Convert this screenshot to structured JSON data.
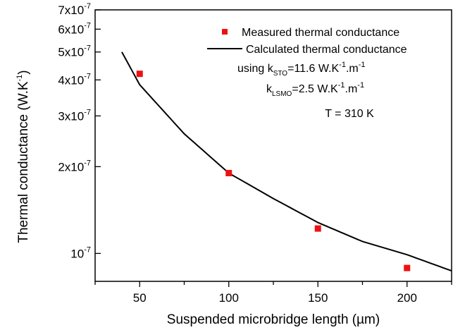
{
  "chart_data": {
    "type": "scatter",
    "y_scale": "log",
    "xlabel": "Suspended microbridge length (µm)",
    "ylabel_parts": {
      "pre": "Thermal conductance (W.K",
      "sup": "-1",
      "post": ")"
    },
    "xlim": [
      25,
      225
    ],
    "ylim": [
      8e-08,
      7e-07
    ],
    "x_ticks": [
      {
        "value": 50,
        "label": "50"
      },
      {
        "value": 100,
        "label": "100"
      },
      {
        "value": 150,
        "label": "150"
      },
      {
        "value": 200,
        "label": "200"
      }
    ],
    "y_ticks": [
      {
        "value": 1e-07,
        "mantissa": "10",
        "exp": "-7"
      },
      {
        "value": 2e-07,
        "mantissa": "2x10",
        "exp": "-7"
      },
      {
        "value": 3e-07,
        "mantissa": "3x10",
        "exp": "-7"
      },
      {
        "value": 4e-07,
        "mantissa": "4x10",
        "exp": "-7"
      },
      {
        "value": 5e-07,
        "mantissa": "5x10",
        "exp": "-7"
      },
      {
        "value": 6e-07,
        "mantissa": "6x10",
        "exp": "-7"
      },
      {
        "value": 7e-07,
        "mantissa": "7x10",
        "exp": "-7"
      }
    ],
    "series": [
      {
        "name": "Measured thermal conductance",
        "kind": "markers",
        "color": "#ee1111",
        "points": [
          {
            "x": 50,
            "y": 4.2e-07
          },
          {
            "x": 100,
            "y": 1.9e-07
          },
          {
            "x": 150,
            "y": 1.22e-07
          },
          {
            "x": 200,
            "y": 8.9e-08
          }
        ]
      },
      {
        "name": "Calculated thermal conductance",
        "kind": "line",
        "color": "#000000",
        "points": [
          {
            "x": 40,
            "y": 5e-07
          },
          {
            "x": 50,
            "y": 3.85e-07
          },
          {
            "x": 75,
            "y": 2.6e-07
          },
          {
            "x": 100,
            "y": 1.9e-07
          },
          {
            "x": 125,
            "y": 1.55e-07
          },
          {
            "x": 150,
            "y": 1.28e-07
          },
          {
            "x": 175,
            "y": 1.1e-07
          },
          {
            "x": 200,
            "y": 9.9e-08
          },
          {
            "x": 225,
            "y": 8.7e-08
          }
        ]
      }
    ],
    "legend": {
      "position": "top-right",
      "line1": {
        "pre": "using k",
        "sub": "STO",
        "post1": "=11.6 W.K",
        "sup": "-1",
        "post2": ".m",
        "sup2": "-1"
      },
      "line2": {
        "pre": "k",
        "sub": "LSMO",
        "post1": "=2.5 W.K",
        "sup": "-1",
        "post2": ".m",
        "sup2": "-1"
      },
      "temperature": "T = 310 K"
    }
  }
}
